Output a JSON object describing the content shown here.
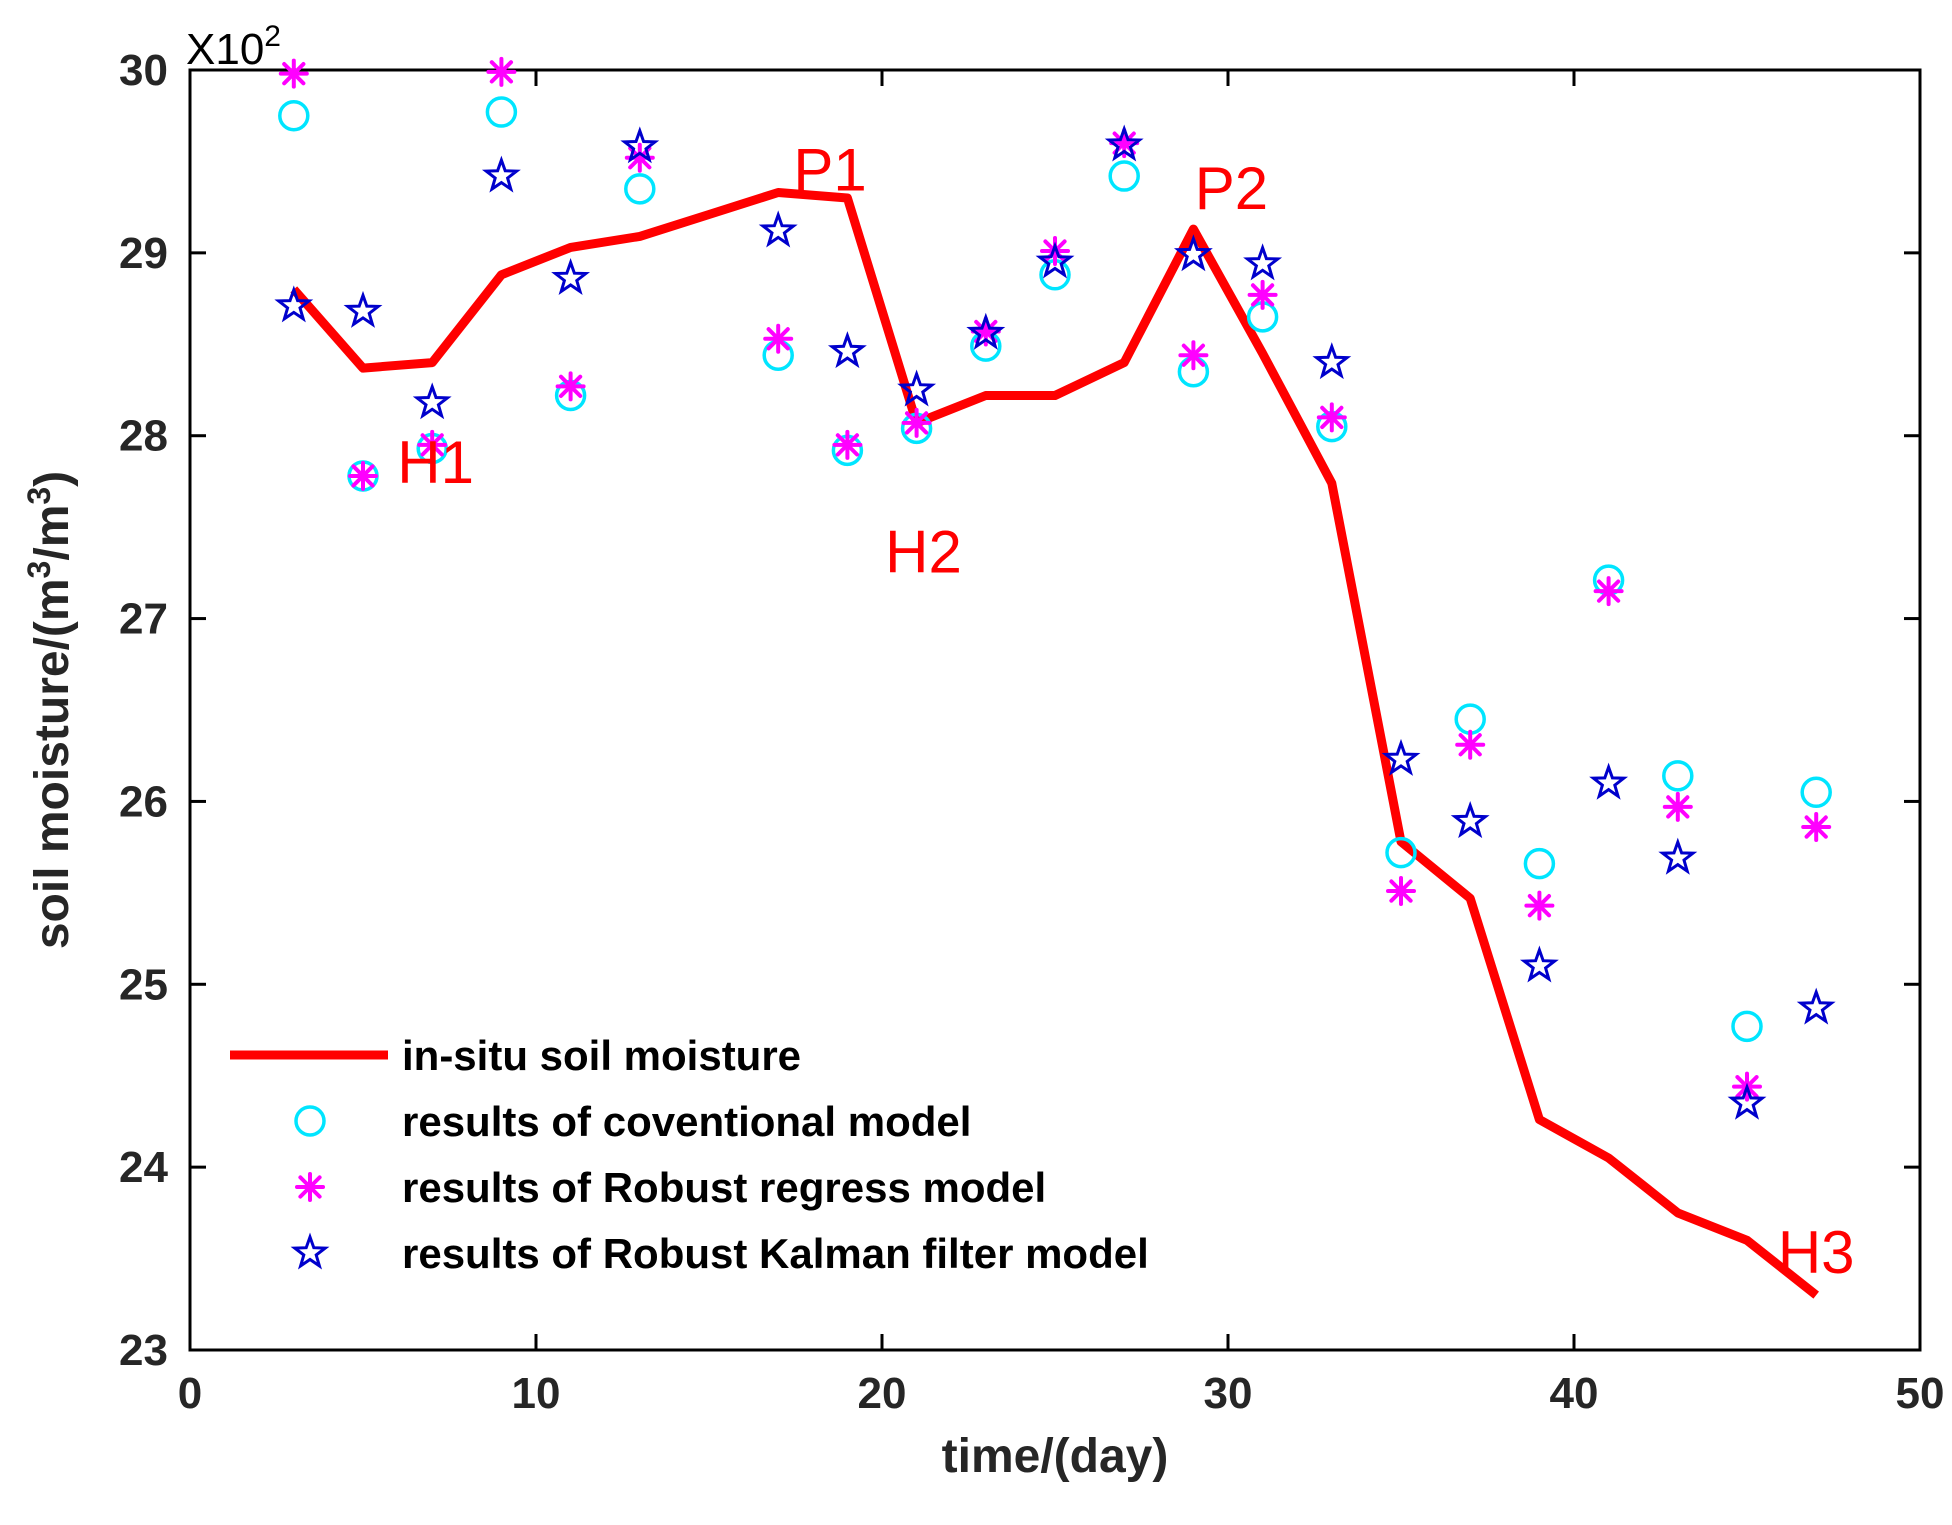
{
  "chart_data": {
    "type": "line+scatter",
    "xlabel": "time/(day)",
    "ylabel": "soil moisture/(m³/m³)",
    "ylabel_parts": {
      "base": "soil moisture/(m",
      "sup1": "3",
      "mid": "/m",
      "sup2": "3",
      "end": ")"
    },
    "y_scale_factor": {
      "base": "X10",
      "exp": "2"
    },
    "xlim": [
      0,
      50
    ],
    "ylim": [
      23,
      30
    ],
    "xticks": [
      0,
      10,
      20,
      30,
      40,
      50
    ],
    "yticks": [
      23,
      24,
      25,
      26,
      27,
      28,
      29,
      30
    ],
    "colors": {
      "line": "#ff0000",
      "conventional": "#00e5ff",
      "robust_regress": "#ff00ff",
      "kalman": "#0000cc",
      "axis": "#000000",
      "annotation": "#ff0000"
    },
    "series": [
      {
        "key": "insitu",
        "name": "in-situ soil moisture",
        "style": "line",
        "x": [
          3,
          5,
          7,
          9,
          11,
          13,
          15,
          17,
          19,
          21,
          23,
          25,
          27,
          29,
          31,
          33,
          35,
          37,
          39,
          41,
          43,
          45,
          47
        ],
        "y": [
          28.8,
          28.37,
          28.4,
          28.88,
          29.03,
          29.09,
          29.21,
          29.33,
          29.3,
          28.07,
          28.22,
          28.22,
          28.4,
          29.13,
          28.45,
          27.74,
          25.78,
          25.47,
          24.26,
          24.05,
          23.75,
          23.6,
          23.3
        ]
      },
      {
        "key": "conventional",
        "name": "results of coventional model",
        "style": "circle",
        "x": [
          3,
          5,
          7,
          9,
          11,
          13,
          17,
          19,
          21,
          23,
          25,
          27,
          29,
          31,
          33,
          35,
          37,
          39,
          41,
          43,
          45,
          47
        ],
        "y": [
          29.75,
          27.78,
          27.93,
          29.77,
          28.22,
          29.35,
          28.44,
          27.92,
          28.04,
          28.49,
          28.88,
          29.42,
          28.35,
          28.65,
          28.05,
          25.72,
          26.45,
          25.66,
          27.21,
          26.14,
          24.77,
          26.05
        ]
      },
      {
        "key": "robust_regress",
        "name": "results of Robust regress model",
        "style": "asterisk",
        "x": [
          3,
          5,
          7,
          9,
          11,
          13,
          17,
          19,
          21,
          23,
          25,
          27,
          29,
          31,
          33,
          35,
          37,
          39,
          41,
          43,
          45,
          47
        ],
        "y": [
          29.98,
          27.78,
          27.95,
          29.99,
          28.27,
          29.52,
          28.53,
          27.95,
          28.07,
          28.57,
          29.01,
          29.6,
          28.44,
          28.77,
          28.1,
          25.51,
          26.31,
          25.43,
          27.15,
          25.97,
          24.44,
          25.86
        ]
      },
      {
        "key": "kalman",
        "name": "results of Robust Kalman filter model",
        "style": "star",
        "x": [
          3,
          5,
          7,
          9,
          11,
          13,
          17,
          19,
          21,
          23,
          25,
          27,
          29,
          31,
          33,
          35,
          37,
          39,
          41,
          43,
          45,
          47
        ],
        "y": [
          28.71,
          28.68,
          28.18,
          29.42,
          28.86,
          29.58,
          29.12,
          28.46,
          28.25,
          28.56,
          28.95,
          29.59,
          28.99,
          28.94,
          28.4,
          26.23,
          25.89,
          25.1,
          26.1,
          25.69,
          24.35,
          24.87
        ]
      }
    ],
    "annotations": [
      {
        "text": "P1",
        "x": 18.5,
        "y": 29.45
      },
      {
        "text": "P2",
        "x": 30.1,
        "y": 29.35
      },
      {
        "text": "H1",
        "x": 7.1,
        "y": 27.85
      },
      {
        "text": "H2",
        "x": 21.2,
        "y": 27.36
      },
      {
        "text": "H3",
        "x": 47.0,
        "y": 23.53
      }
    ],
    "legend_position": "bottom-left"
  }
}
